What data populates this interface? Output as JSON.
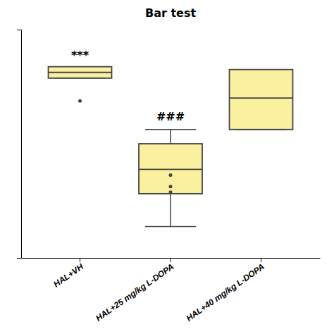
{
  "chart_data": {
    "type": "box",
    "title": "Bar test",
    "categories": [
      "HAL+VH",
      "HAL+25 mg/kg L-DOPA",
      "HAL+40 mg/kg L-DOPA"
    ],
    "values": [
      {
        "q1": 176,
        "median": 180,
        "q3": 184,
        "whisker_low": 176,
        "whisker_high": 184,
        "outliers": [
          160
        ]
      },
      {
        "q1": 95,
        "median": 112,
        "q3": 130,
        "whisker_low": 72,
        "whisker_high": 140,
        "outliers": [
          108,
          100,
          96
        ]
      },
      {
        "q1": 140,
        "median": 162,
        "q3": 182,
        "whisker_low": 140,
        "whisker_high": 182,
        "outliers": []
      }
    ],
    "annotations": [
      {
        "text": "***",
        "x": "HAL+VH",
        "y": 188
      },
      {
        "text": "###",
        "x": "HAL+25 mg/kg L-DOPA",
        "y": 145
      }
    ],
    "color": "#FAF0A0",
    "ylim": [
      50,
      210
    ],
    "tick_labels": "x",
    "grid": false
  }
}
